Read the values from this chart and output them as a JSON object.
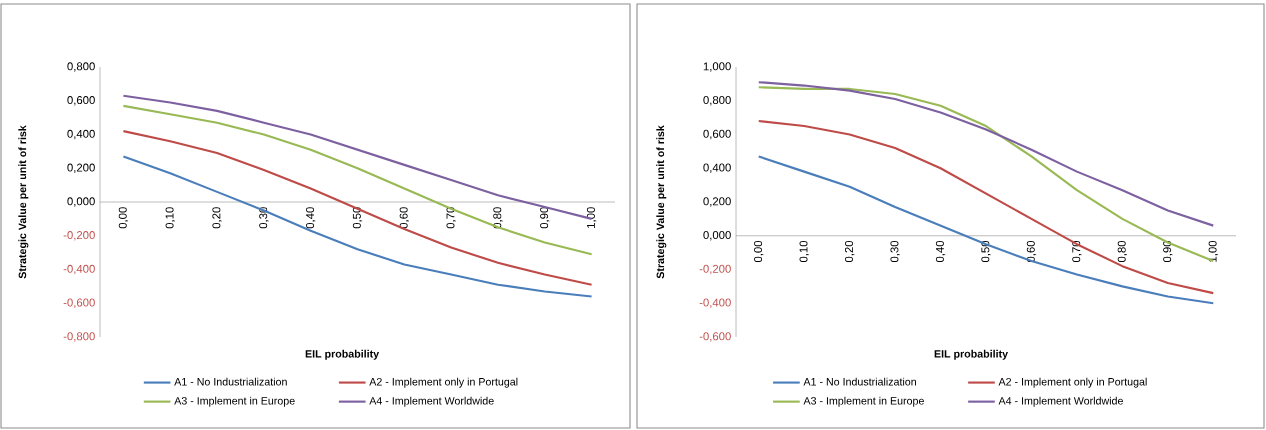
{
  "chart_data": [
    {
      "type": "line",
      "xlabel": "EIL probability",
      "ylabel": "Strategic Value per unit of risk",
      "categories": [
        "0,00",
        "0,10",
        "0,20",
        "0,30",
        "0,40",
        "0,50",
        "0,60",
        "0,70",
        "0,80",
        "0,90",
        "1,00"
      ],
      "series": [
        {
          "name": "A1 - No Industrialization",
          "color": "#4a7ebb",
          "values": [
            0.27,
            0.17,
            0.06,
            -0.05,
            -0.17,
            -0.28,
            -0.37,
            -0.43,
            -0.49,
            -0.53,
            -0.56
          ]
        },
        {
          "name": "A2 - Implement only in Portugal",
          "color": "#be4b48",
          "values": [
            0.42,
            0.36,
            0.29,
            0.19,
            0.08,
            -0.04,
            -0.16,
            -0.27,
            -0.36,
            -0.43,
            -0.49
          ]
        },
        {
          "name": "A3 - Implement in Europe",
          "color": "#98b954",
          "values": [
            0.57,
            0.52,
            0.47,
            0.4,
            0.31,
            0.2,
            0.08,
            -0.04,
            -0.15,
            -0.24,
            -0.31
          ]
        },
        {
          "name": "A4 - Implement Worldwide",
          "color": "#7d60a0",
          "values": [
            0.63,
            0.59,
            0.54,
            0.47,
            0.4,
            0.31,
            0.22,
            0.13,
            0.04,
            -0.03,
            -0.1
          ]
        }
      ],
      "ylim": [
        -0.8,
        0.8
      ],
      "yticks": [
        {
          "value": -0.8,
          "label": "-0,800"
        },
        {
          "value": -0.6,
          "label": "-0,600"
        },
        {
          "value": -0.4,
          "label": "-0,400"
        },
        {
          "value": -0.2,
          "label": "-0,200"
        },
        {
          "value": 0,
          "label": "0,000"
        },
        {
          "value": 0.2,
          "label": "0,200"
        },
        {
          "value": 0.4,
          "label": "0,400"
        },
        {
          "value": 0.6,
          "label": "0,600"
        },
        {
          "value": 0.8,
          "label": "0,800"
        }
      ],
      "legend": "bottom",
      "marker": "none"
    },
    {
      "type": "line",
      "xlabel": "EIL probability",
      "ylabel": "Strategic Value per unit of risk",
      "categories": [
        "0,00",
        "0,10",
        "0,20",
        "0,30",
        "0,40",
        "0,50",
        "0,60",
        "0,70",
        "0,80",
        "0,90",
        "1,00"
      ],
      "series": [
        {
          "name": "A1 - No Industrialization",
          "color": "#4a7ebb",
          "values": [
            0.47,
            0.38,
            0.29,
            0.17,
            0.06,
            -0.05,
            -0.15,
            -0.23,
            -0.3,
            -0.36,
            -0.4
          ]
        },
        {
          "name": "A2 - Implement only in Portugal",
          "color": "#be4b48",
          "values": [
            0.68,
            0.65,
            0.6,
            0.52,
            0.4,
            0.25,
            0.1,
            -0.05,
            -0.18,
            -0.28,
            -0.34
          ]
        },
        {
          "name": "A3 - Implement in Europe",
          "color": "#98b954",
          "values": [
            0.88,
            0.87,
            0.87,
            0.84,
            0.77,
            0.65,
            0.47,
            0.27,
            0.1,
            -0.04,
            -0.15
          ]
        },
        {
          "name": "A4 - Implement Worldwide",
          "color": "#7d60a0",
          "values": [
            0.91,
            0.89,
            0.86,
            0.81,
            0.73,
            0.63,
            0.51,
            0.38,
            0.27,
            0.15,
            0.06
          ]
        }
      ],
      "ylim": [
        -0.6,
        1.0
      ],
      "yticks": [
        {
          "value": -0.6,
          "label": "-0,600"
        },
        {
          "value": -0.4,
          "label": "-0,400"
        },
        {
          "value": -0.2,
          "label": "-0,200"
        },
        {
          "value": 0,
          "label": "0,000"
        },
        {
          "value": 0.2,
          "label": "0,200"
        },
        {
          "value": 0.4,
          "label": "0,400"
        },
        {
          "value": 0.6,
          "label": "0,600"
        },
        {
          "value": 0.8,
          "label": "0,800"
        },
        {
          "value": 1.0,
          "label": "1,000"
        }
      ],
      "legend": "bottom",
      "marker": "none"
    }
  ]
}
